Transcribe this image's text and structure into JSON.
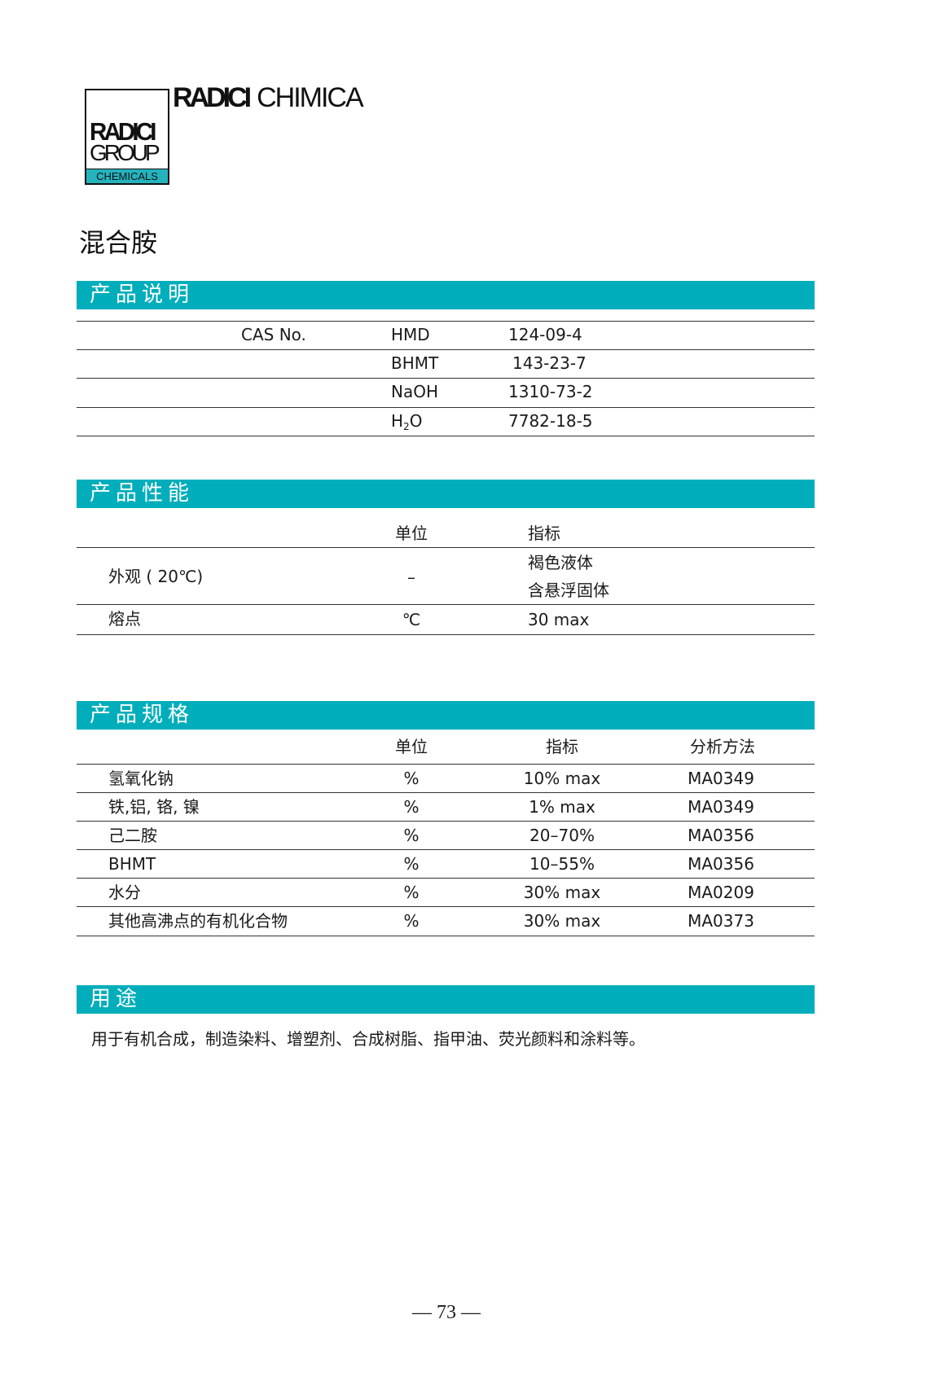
{
  "logo": {
    "box_line1": "RADICI",
    "box_line2": "GROUP",
    "box_line3": "CHEMICALS",
    "brand_bold": "RADICI",
    "brand_light": "CHIMICA"
  },
  "title": "混合胺",
  "accent_color": "#00aebb",
  "description": {
    "heading": "产品说明",
    "cas_label": "CAS  No.",
    "rows": [
      {
        "name": "HMD",
        "cas": "124-09-4"
      },
      {
        "name": "BHMT",
        "cas": "143-23-7"
      },
      {
        "name": "NaOH",
        "cas": "1310-73-2"
      },
      {
        "name_main": "H",
        "name_sub": "2",
        "name_tail": "O",
        "cas": "7782-18-5"
      }
    ]
  },
  "properties": {
    "heading": "产品性能",
    "headers": {
      "unit": "单位",
      "value": "指标"
    },
    "rows": [
      {
        "item": "外观 ( 20℃)",
        "unit": "–",
        "value_line1": "褐色液体",
        "value_line2": "含悬浮固体"
      },
      {
        "item": "熔点",
        "unit": "℃",
        "value": "30 max"
      }
    ]
  },
  "specs": {
    "heading": "产品规格",
    "headers": {
      "unit": "单位",
      "value": "指标",
      "method": "分析方法"
    },
    "rows": [
      {
        "item": "氢氧化钠",
        "unit": "%",
        "value": "10% max",
        "method": "MA0349"
      },
      {
        "item": "铁,铝, 铬, 镍",
        "unit": "%",
        "value": "1% max",
        "method": "MA0349"
      },
      {
        "item": "己二胺",
        "unit": "%",
        "value": "20–70%",
        "method": "MA0356"
      },
      {
        "item": "BHMT",
        "unit": "%",
        "value": "10–55%",
        "method": "MA0356"
      },
      {
        "item": "水分",
        "unit": "%",
        "value": "30% max",
        "method": "MA0209"
      },
      {
        "item": "其他高沸点的有机化合物",
        "unit": "%",
        "value": "30% max",
        "method": "MA0373"
      }
    ]
  },
  "usage": {
    "heading": "用途",
    "text": "用于有机合成，制造染料、增塑剂、合成树脂、指甲油、荧光颜料和涂料等。"
  },
  "page_number": "— 73 —"
}
